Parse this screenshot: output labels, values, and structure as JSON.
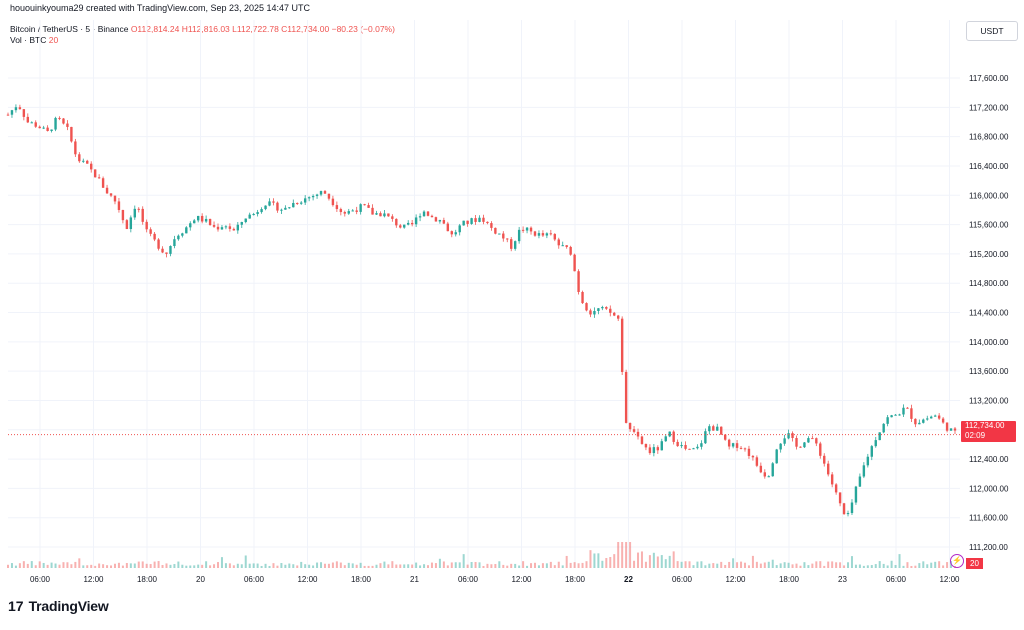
{
  "header": {
    "creator_text": "hououinkyouma29 created with TradingView.com, Sep 23, 2025 14:47 UTC"
  },
  "legend": {
    "symbol": "Bitcoin / TetherUS · 5 · Binance",
    "open": "O112,814.24",
    "high": "H112,816.03",
    "low": "L112,722.78",
    "close": "C112,734.00",
    "change": "−80.23 (−0.07%)",
    "volume_label": "Vol · BTC",
    "volume_value": "20"
  },
  "currency_label": "USDT",
  "price_tag": {
    "price": "112,734.00",
    "countdown": "02:09"
  },
  "volume_tag": "20",
  "brand": {
    "name": "TradingView",
    "logo": "17"
  },
  "colors": {
    "up": "#26a69a",
    "down": "#ef5350",
    "tag": "#f23645",
    "grid": "#f0f3fa"
  },
  "chart_data": {
    "type": "candlestick",
    "y_axis_ticks": [
      "117,600.00",
      "117,200.00",
      "116,800.00",
      "116,400.00",
      "116,000.00",
      "115,600.00",
      "115,200.00",
      "114,800.00",
      "114,400.00",
      "114,000.00",
      "113,600.00",
      "113,200.00",
      "112,800.00",
      "112,400.00",
      "112,000.00",
      "111,600.00",
      "111,200.00"
    ],
    "ylim": [
      111200,
      117600
    ],
    "x_axis_ticks": [
      "06:00",
      "12:00",
      "18:00",
      "20",
      "06:00",
      "12:00",
      "18:00",
      "21",
      "06:00",
      "12:00",
      "18:00",
      "22",
      "06:00",
      "12:00",
      "18:00",
      "23",
      "06:00",
      "12:00"
    ],
    "last_price": 112734.0,
    "series": [
      {
        "values": [
          [
            0,
            117100
          ],
          [
            2,
            117250
          ],
          [
            4,
            117000
          ],
          [
            6,
            116950
          ],
          [
            8,
            116850
          ],
          [
            10,
            117050
          ],
          [
            12,
            116900
          ],
          [
            14,
            116500
          ],
          [
            16,
            116400
          ],
          [
            18,
            116250
          ],
          [
            20,
            116050
          ],
          [
            22,
            115900
          ],
          [
            24,
            115550
          ],
          [
            26,
            115900
          ],
          [
            28,
            115500
          ],
          [
            30,
            115350
          ],
          [
            32,
            115200
          ],
          [
            34,
            115450
          ],
          [
            36,
            115550
          ],
          [
            38,
            115700
          ],
          [
            40,
            115650
          ],
          [
            42,
            115550
          ],
          [
            44,
            115600
          ],
          [
            46,
            115500
          ],
          [
            48,
            115700
          ],
          [
            50,
            115750
          ],
          [
            52,
            115900
          ],
          [
            54,
            115850
          ],
          [
            56,
            115800
          ],
          [
            58,
            115900
          ],
          [
            60,
            115950
          ],
          [
            62,
            116000
          ],
          [
            64,
            116050
          ],
          [
            66,
            115900
          ],
          [
            68,
            115750
          ],
          [
            70,
            115800
          ],
          [
            72,
            115850
          ],
          [
            74,
            115750
          ],
          [
            76,
            115750
          ],
          [
            78,
            115650
          ],
          [
            80,
            115550
          ],
          [
            82,
            115600
          ],
          [
            84,
            115800
          ],
          [
            86,
            115700
          ],
          [
            88,
            115650
          ],
          [
            90,
            115450
          ],
          [
            92,
            115600
          ],
          [
            94,
            115650
          ],
          [
            96,
            115700
          ],
          [
            98,
            115550
          ],
          [
            100,
            115450
          ],
          [
            102,
            115300
          ],
          [
            104,
            115550
          ],
          [
            106,
            115500
          ],
          [
            108,
            115450
          ],
          [
            110,
            115450
          ],
          [
            112,
            115300
          ],
          [
            114,
            115250
          ],
          [
            116,
            114600
          ],
          [
            118,
            114400
          ],
          [
            120,
            114450
          ],
          [
            122,
            114400
          ],
          [
            124,
            114300
          ],
          [
            125,
            113000
          ],
          [
            126,
            112800
          ],
          [
            128,
            112650
          ],
          [
            130,
            112500
          ],
          [
            132,
            112550
          ],
          [
            134,
            112750
          ],
          [
            136,
            112600
          ],
          [
            138,
            112500
          ],
          [
            140,
            112550
          ],
          [
            142,
            112850
          ],
          [
            144,
            112800
          ],
          [
            146,
            112550
          ],
          [
            148,
            112600
          ],
          [
            150,
            112500
          ],
          [
            152,
            112300
          ],
          [
            154,
            112150
          ],
          [
            156,
            112600
          ],
          [
            158,
            112750
          ],
          [
            160,
            112550
          ],
          [
            162,
            112700
          ],
          [
            164,
            112600
          ],
          [
            166,
            112250
          ],
          [
            168,
            111900
          ],
          [
            170,
            111550
          ],
          [
            172,
            112000
          ],
          [
            174,
            112400
          ],
          [
            176,
            112700
          ],
          [
            178,
            112950
          ],
          [
            180,
            113000
          ],
          [
            182,
            113100
          ],
          [
            184,
            112900
          ],
          [
            186,
            112950
          ],
          [
            188,
            113000
          ],
          [
            190,
            112850
          ],
          [
            192,
            112750
          ]
        ]
      }
    ]
  }
}
